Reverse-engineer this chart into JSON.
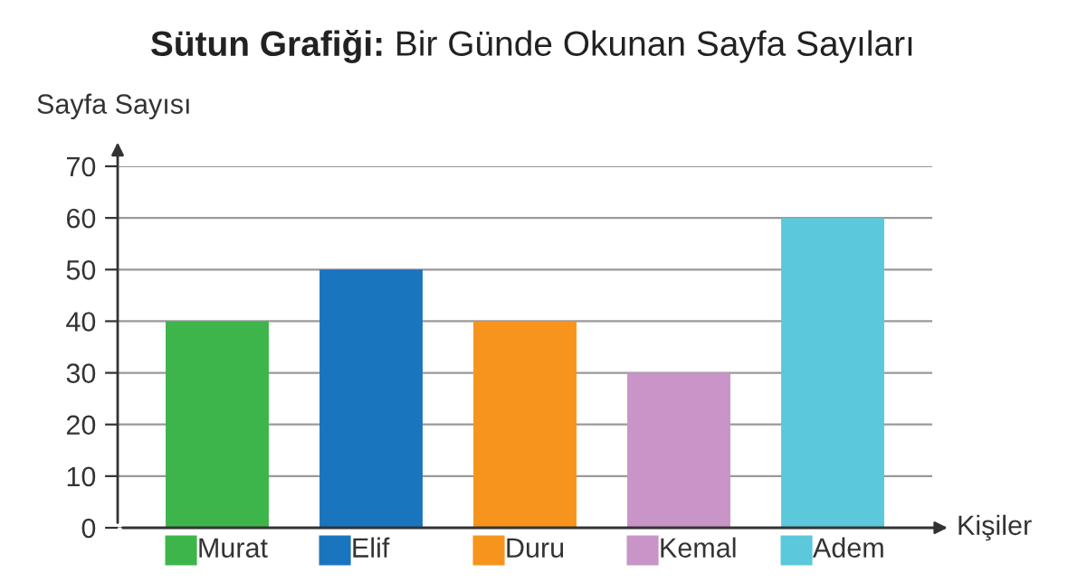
{
  "chart_data": {
    "type": "bar",
    "title": "Sütun Grafiği:",
    "subtitle": "Bir Günde Okunan Sayfa Sayıları",
    "xlabel": "Kişiler",
    "ylabel": "Sayfa Sayısı",
    "categories": [
      "Murat",
      "Elif",
      "Duru",
      "Kemal",
      "Adem"
    ],
    "values": [
      40,
      50,
      40,
      30,
      60
    ],
    "colors": [
      "#3db54a",
      "#1a75bf",
      "#f7941d",
      "#c994c7",
      "#5bc8db"
    ],
    "ylim": [
      0,
      70
    ],
    "yticks": [
      0,
      10,
      20,
      30,
      40,
      50,
      60,
      70
    ],
    "grid": "y"
  }
}
